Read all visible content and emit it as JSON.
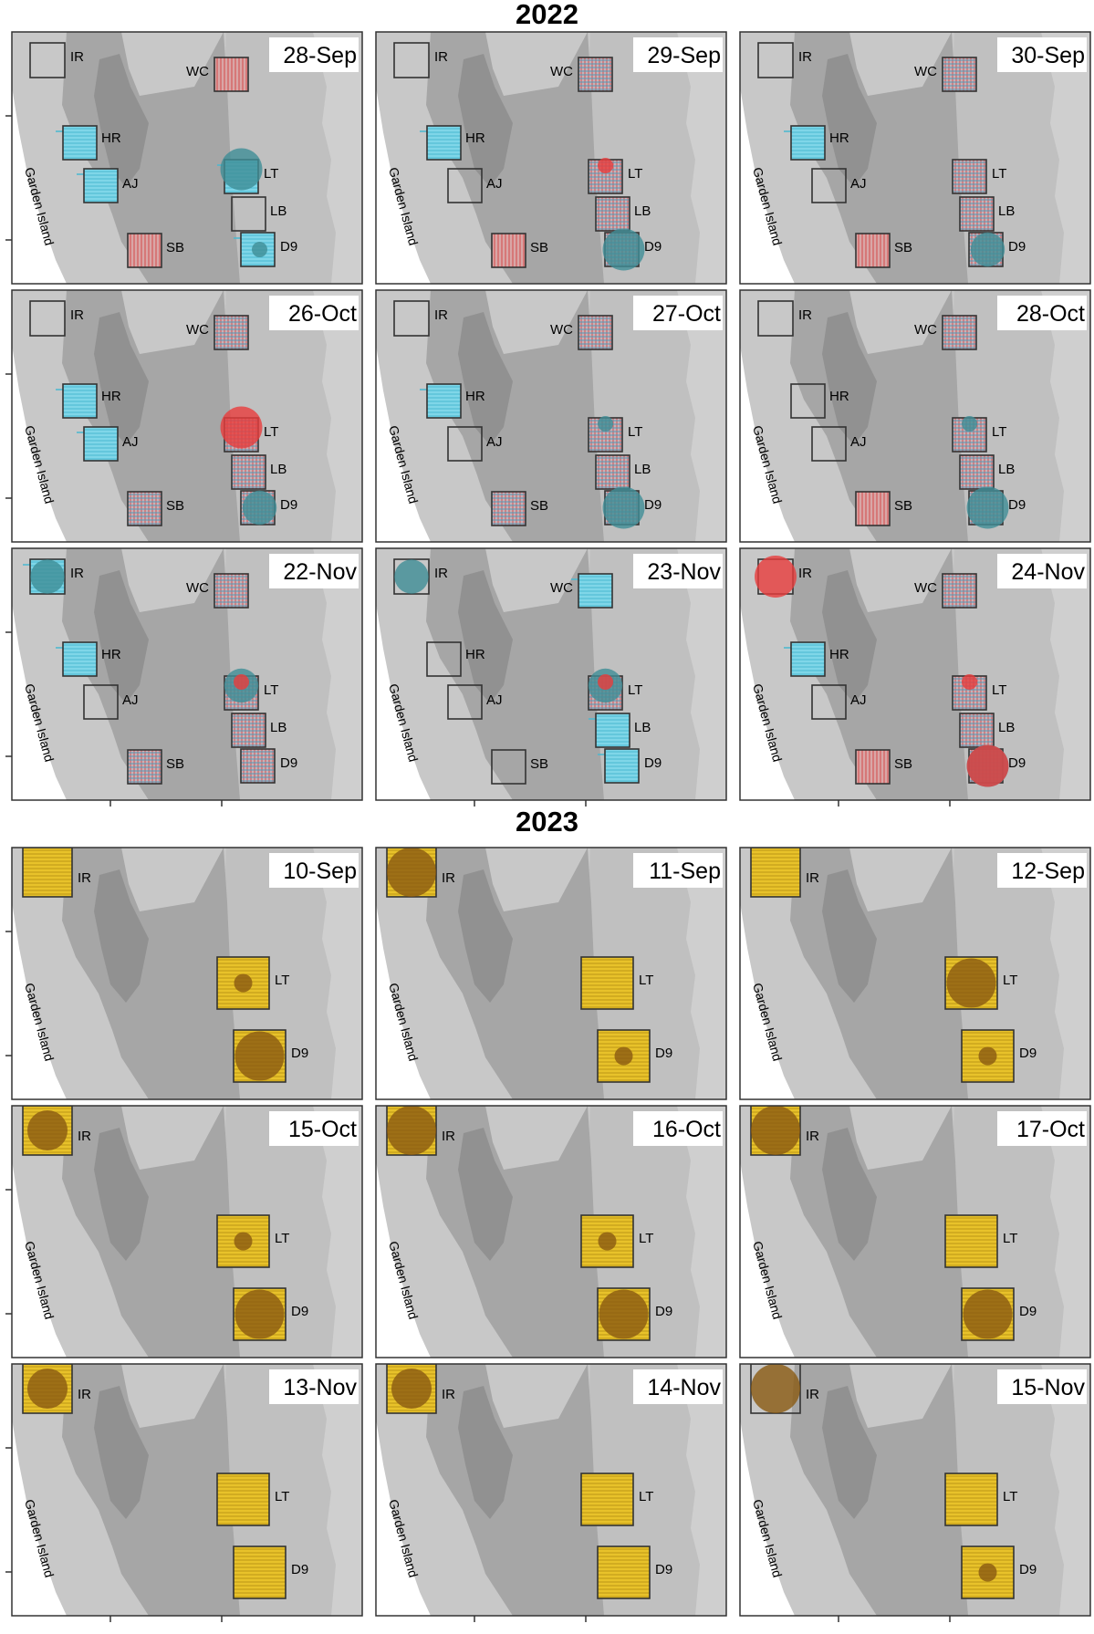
{
  "figure_sections": [
    {
      "year": "2022",
      "panels": [
        {
          "date": "28-Sep",
          "sites": [
            {
              "code": "IR",
              "fill": "none"
            },
            {
              "code": "WC",
              "fill": "red"
            },
            {
              "code": "HR",
              "fill": "cyan"
            },
            {
              "code": "LT",
              "fill": "cyan"
            },
            {
              "code": "AJ",
              "fill": "cyan"
            },
            {
              "code": "LB",
              "fill": "none"
            },
            {
              "code": "SB",
              "fill": "red"
            },
            {
              "code": "D9",
              "fill": "cyan"
            }
          ],
          "circles": [
            {
              "site": "LT",
              "color": "teal",
              "size": "large"
            },
            {
              "site": "D9",
              "color": "teal",
              "size": "small"
            }
          ]
        },
        {
          "date": "29-Sep",
          "sites": [
            {
              "code": "IR",
              "fill": "none"
            },
            {
              "code": "WC",
              "fill": "grid"
            },
            {
              "code": "HR",
              "fill": "cyan"
            },
            {
              "code": "LT",
              "fill": "grid"
            },
            {
              "code": "AJ",
              "fill": "none"
            },
            {
              "code": "LB",
              "fill": "grid"
            },
            {
              "code": "SB",
              "fill": "red"
            },
            {
              "code": "D9",
              "fill": "grid"
            }
          ],
          "circles": [
            {
              "site": "LT",
              "color": "red",
              "size": "small"
            },
            {
              "site": "D9",
              "color": "teal",
              "size": "large"
            }
          ]
        },
        {
          "date": "30-Sep",
          "sites": [
            {
              "code": "IR",
              "fill": "none"
            },
            {
              "code": "WC",
              "fill": "grid"
            },
            {
              "code": "HR",
              "fill": "cyan"
            },
            {
              "code": "LT",
              "fill": "grid"
            },
            {
              "code": "AJ",
              "fill": "none"
            },
            {
              "code": "LB",
              "fill": "grid"
            },
            {
              "code": "SB",
              "fill": "red"
            },
            {
              "code": "D9",
              "fill": "grid"
            }
          ],
          "circles": [
            {
              "site": "D9",
              "color": "teal",
              "size": "medium"
            }
          ]
        },
        {
          "date": "26-Oct",
          "sites": [
            {
              "code": "IR",
              "fill": "none"
            },
            {
              "code": "WC",
              "fill": "grid"
            },
            {
              "code": "HR",
              "fill": "cyan"
            },
            {
              "code": "LT",
              "fill": "grid"
            },
            {
              "code": "AJ",
              "fill": "cyan"
            },
            {
              "code": "LB",
              "fill": "grid"
            },
            {
              "code": "SB",
              "fill": "grid"
            },
            {
              "code": "D9",
              "fill": "grid"
            }
          ],
          "circles": [
            {
              "site": "LT",
              "color": "red",
              "size": "large"
            },
            {
              "site": "D9",
              "color": "teal",
              "size": "medium"
            }
          ]
        },
        {
          "date": "27-Oct",
          "sites": [
            {
              "code": "IR",
              "fill": "none"
            },
            {
              "code": "WC",
              "fill": "grid"
            },
            {
              "code": "HR",
              "fill": "cyan"
            },
            {
              "code": "LT",
              "fill": "grid"
            },
            {
              "code": "AJ",
              "fill": "none"
            },
            {
              "code": "LB",
              "fill": "grid"
            },
            {
              "code": "SB",
              "fill": "grid"
            },
            {
              "code": "D9",
              "fill": "grid"
            }
          ],
          "circles": [
            {
              "site": "LT",
              "color": "teal",
              "size": "small"
            },
            {
              "site": "D9",
              "color": "teal",
              "size": "large"
            }
          ]
        },
        {
          "date": "28-Oct",
          "sites": [
            {
              "code": "IR",
              "fill": "none"
            },
            {
              "code": "WC",
              "fill": "grid"
            },
            {
              "code": "HR",
              "fill": "none"
            },
            {
              "code": "LT",
              "fill": "grid"
            },
            {
              "code": "AJ",
              "fill": "none"
            },
            {
              "code": "LB",
              "fill": "grid"
            },
            {
              "code": "SB",
              "fill": "red"
            },
            {
              "code": "D9",
              "fill": "grid"
            }
          ],
          "circles": [
            {
              "site": "LT",
              "color": "teal",
              "size": "small"
            },
            {
              "site": "D9",
              "color": "teal",
              "size": "large"
            }
          ]
        },
        {
          "date": "22-Nov",
          "sites": [
            {
              "code": "IR",
              "fill": "cyan"
            },
            {
              "code": "WC",
              "fill": "grid"
            },
            {
              "code": "HR",
              "fill": "cyan"
            },
            {
              "code": "LT",
              "fill": "grid"
            },
            {
              "code": "AJ",
              "fill": "none"
            },
            {
              "code": "LB",
              "fill": "grid"
            },
            {
              "code": "SB",
              "fill": "grid"
            },
            {
              "code": "D9",
              "fill": "grid"
            }
          ],
          "circles": [
            {
              "site": "IR",
              "color": "teal",
              "size": "medium"
            },
            {
              "site": "LT",
              "color": "teal",
              "size": "medium"
            },
            {
              "site": "LT",
              "color": "red",
              "size": "small"
            }
          ]
        },
        {
          "date": "23-Nov",
          "sites": [
            {
              "code": "IR",
              "fill": "none"
            },
            {
              "code": "WC",
              "fill": "cyan"
            },
            {
              "code": "HR",
              "fill": "none"
            },
            {
              "code": "LT",
              "fill": "grid"
            },
            {
              "code": "AJ",
              "fill": "none"
            },
            {
              "code": "LB",
              "fill": "cyan"
            },
            {
              "code": "SB",
              "fill": "none"
            },
            {
              "code": "D9",
              "fill": "cyan"
            }
          ],
          "circles": [
            {
              "site": "IR",
              "color": "teal",
              "size": "medium"
            },
            {
              "site": "LT",
              "color": "teal",
              "size": "medium"
            },
            {
              "site": "LT",
              "color": "red",
              "size": "small"
            }
          ]
        },
        {
          "date": "24-Nov",
          "sites": [
            {
              "code": "IR",
              "fill": "none"
            },
            {
              "code": "WC",
              "fill": "grid"
            },
            {
              "code": "HR",
              "fill": "cyan"
            },
            {
              "code": "LT",
              "fill": "grid"
            },
            {
              "code": "AJ",
              "fill": "none"
            },
            {
              "code": "LB",
              "fill": "grid"
            },
            {
              "code": "SB",
              "fill": "red"
            },
            {
              "code": "D9",
              "fill": "grid"
            }
          ],
          "circles": [
            {
              "site": "IR",
              "color": "red",
              "size": "large"
            },
            {
              "site": "LT",
              "color": "red",
              "size": "small"
            },
            {
              "site": "D9",
              "color": "teal",
              "size": "large"
            },
            {
              "site": "D9",
              "color": "red",
              "size": "large"
            }
          ]
        }
      ]
    },
    {
      "year": "2023",
      "panels": [
        {
          "date": "10-Sep",
          "sites": [
            {
              "code": "IR",
              "fill": "yellow"
            },
            {
              "code": "LT",
              "fill": "yellow"
            },
            {
              "code": "D9",
              "fill": "yellow"
            }
          ],
          "circles": [
            {
              "site": "LT",
              "color": "brown",
              "size": "small"
            },
            {
              "site": "D9",
              "color": "brown",
              "size": "large"
            }
          ]
        },
        {
          "date": "11-Sep",
          "sites": [
            {
              "code": "IR",
              "fill": "yellow"
            },
            {
              "code": "LT",
              "fill": "yellow"
            },
            {
              "code": "D9",
              "fill": "yellow"
            }
          ],
          "circles": [
            {
              "site": "IR",
              "color": "brown",
              "size": "large"
            },
            {
              "site": "D9",
              "color": "brown",
              "size": "small"
            }
          ]
        },
        {
          "date": "12-Sep",
          "sites": [
            {
              "code": "IR",
              "fill": "yellow"
            },
            {
              "code": "LT",
              "fill": "yellow"
            },
            {
              "code": "D9",
              "fill": "yellow"
            }
          ],
          "circles": [
            {
              "site": "LT",
              "color": "brown",
              "size": "large"
            },
            {
              "site": "D9",
              "color": "brown",
              "size": "small"
            }
          ]
        },
        {
          "date": "15-Oct",
          "sites": [
            {
              "code": "IR",
              "fill": "yellow"
            },
            {
              "code": "LT",
              "fill": "yellow"
            },
            {
              "code": "D9",
              "fill": "yellow"
            }
          ],
          "circles": [
            {
              "site": "IR",
              "color": "brown",
              "size": "medium"
            },
            {
              "site": "LT",
              "color": "brown",
              "size": "small"
            },
            {
              "site": "D9",
              "color": "brown",
              "size": "large"
            }
          ]
        },
        {
          "date": "16-Oct",
          "sites": [
            {
              "code": "IR",
              "fill": "yellow"
            },
            {
              "code": "LT",
              "fill": "yellow"
            },
            {
              "code": "D9",
              "fill": "yellow"
            }
          ],
          "circles": [
            {
              "site": "IR",
              "color": "brown",
              "size": "large"
            },
            {
              "site": "LT",
              "color": "brown",
              "size": "small"
            },
            {
              "site": "D9",
              "color": "brown",
              "size": "large"
            }
          ]
        },
        {
          "date": "17-Oct",
          "sites": [
            {
              "code": "IR",
              "fill": "yellow"
            },
            {
              "code": "LT",
              "fill": "yellow"
            },
            {
              "code": "D9",
              "fill": "yellow"
            }
          ],
          "circles": [
            {
              "site": "IR",
              "color": "brown",
              "size": "large"
            },
            {
              "site": "D9",
              "color": "brown",
              "size": "large"
            }
          ]
        },
        {
          "date": "13-Nov",
          "sites": [
            {
              "code": "IR",
              "fill": "yellow"
            },
            {
              "code": "LT",
              "fill": "yellow"
            },
            {
              "code": "D9",
              "fill": "yellow"
            }
          ],
          "circles": [
            {
              "site": "IR",
              "color": "brown",
              "size": "medium"
            }
          ]
        },
        {
          "date": "14-Nov",
          "sites": [
            {
              "code": "IR",
              "fill": "yellow"
            },
            {
              "code": "LT",
              "fill": "yellow"
            },
            {
              "code": "D9",
              "fill": "yellow"
            }
          ],
          "circles": [
            {
              "site": "IR",
              "color": "brown",
              "size": "medium"
            }
          ]
        },
        {
          "date": "15-Nov",
          "sites": [
            {
              "code": "IR",
              "fill": "none"
            },
            {
              "code": "LT",
              "fill": "yellow"
            },
            {
              "code": "D9",
              "fill": "yellow"
            }
          ],
          "circles": [
            {
              "site": "IR",
              "color": "brown",
              "size": "large"
            },
            {
              "site": "D9",
              "color": "brown",
              "size": "small"
            }
          ]
        }
      ]
    }
  ],
  "land_label": "Garden Island",
  "colors": {
    "land": "#ffffff",
    "shallow": "#c8c8c8",
    "mid": "#a6a6a6",
    "deep": "#8f8f8f",
    "cyan": "#7fd6e8",
    "cyan_line": "#49b8d0",
    "red": "#e83c3c",
    "teal": "#3f8d96",
    "yellow": "#e8c22a",
    "yellow_line": "#bc9716",
    "brown": "#8a5a12",
    "grid_red": "#d24a4a",
    "grid_blue": "#4f9cba"
  }
}
